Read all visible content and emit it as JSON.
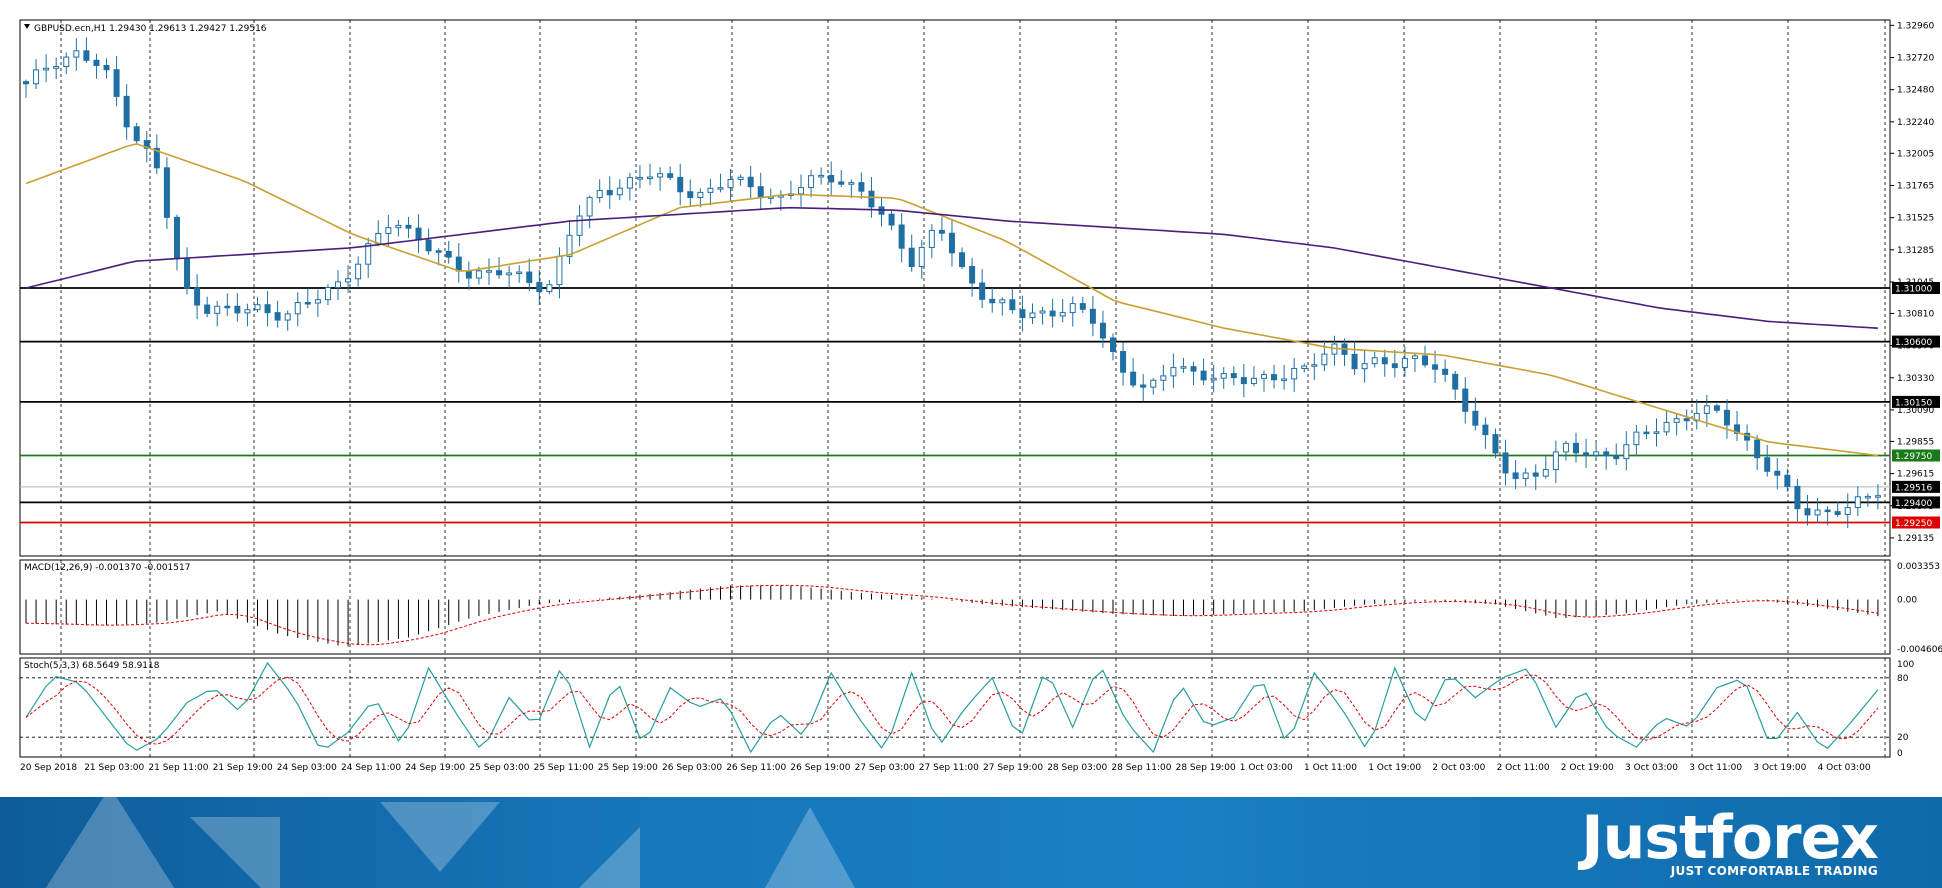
{
  "chart_data": {
    "type": "candlestick",
    "symbol_header": "GBPUSD.ecn,H1  1.29430 1.29613 1.29427 1.29516",
    "price_axis": {
      "ylim": [
        1.29,
        1.33
      ],
      "ticks": [
        "1.32960",
        "1.32720",
        "1.32480",
        "1.32240",
        "1.32005",
        "1.31765",
        "1.31525",
        "1.31285",
        "1.31045",
        "1.30810",
        "1.30570",
        "1.30330",
        "1.30090",
        "1.29855",
        "1.29615",
        "1.29375",
        "1.29135"
      ]
    },
    "x_axis_labels": [
      "20 Sep 2018",
      "21 Sep 03:00",
      "21 Sep 11:00",
      "21 Sep 19:00",
      "24 Sep 03:00",
      "24 Sep 11:00",
      "24 Sep 19:00",
      "25 Sep 03:00",
      "25 Sep 11:00",
      "25 Sep 19:00",
      "26 Sep 03:00",
      "26 Sep 11:00",
      "26 Sep 19:00",
      "27 Sep 03:00",
      "27 Sep 11:00",
      "27 Sep 19:00",
      "28 Sep 03:00",
      "28 Sep 11:00",
      "28 Sep 19:00",
      "1 Oct 03:00",
      "1 Oct 11:00",
      "1 Oct 19:00",
      "2 Oct 03:00",
      "2 Oct 11:00",
      "2 Oct 19:00",
      "3 Oct 03:00",
      "3 Oct 11:00",
      "3 Oct 19:00",
      "4 Oct 03:00"
    ],
    "horizontal_levels": [
      {
        "label": "1.31000",
        "value": 1.31,
        "color": "#000000"
      },
      {
        "label": "1.30600",
        "value": 1.306,
        "color": "#000000"
      },
      {
        "label": "1.30150",
        "value": 1.3015,
        "color": "#000000"
      },
      {
        "label": "1.29750",
        "value": 1.2975,
        "color": "#1a7a1a"
      },
      {
        "label": "1.29516",
        "value": 1.29516,
        "color": "#000000"
      },
      {
        "label": "1.29400",
        "value": 1.294,
        "color": "#000000"
      },
      {
        "label": "1.29250",
        "value": 1.2925,
        "color": "#dd0000"
      }
    ],
    "candle_close_anchors": [
      1.325,
      1.327,
      1.3275,
      1.3262,
      1.322,
      1.319,
      1.31,
      1.3085,
      1.3082,
      1.3085,
      1.308,
      1.309,
      1.3105,
      1.3125,
      1.315,
      1.314,
      1.312,
      1.311,
      1.3115,
      1.3105,
      1.31,
      1.315,
      1.317,
      1.318,
      1.3185,
      1.3175,
      1.317,
      1.318,
      1.3175,
      1.3165,
      1.318,
      1.3185,
      1.317,
      1.315,
      1.312,
      1.3145,
      1.311,
      1.309,
      1.308,
      1.3082,
      1.3085,
      1.3075,
      1.304,
      1.302,
      1.3045,
      1.3035,
      1.303,
      1.3035,
      1.3032,
      1.3038,
      1.306,
      1.304,
      1.3045,
      1.3048,
      1.304,
      1.302,
      1.2985,
      1.2955,
      1.2965,
      1.298,
      1.2975,
      1.2978,
      1.299,
      1.3,
      1.3008,
      1.3005,
      1.2985,
      1.296,
      1.2935,
      1.2933,
      1.2935,
      1.295
    ],
    "moving_averages": [
      {
        "name": "",
        "color": "#c8a032",
        "values": [
          1.3178,
          1.3208,
          1.318,
          1.314,
          1.3112,
          1.3125,
          1.316,
          1.317,
          1.3167,
          1.3135,
          1.309,
          1.307,
          1.3055,
          1.305,
          1.3035,
          1.301,
          1.2985,
          1.2975
        ]
      },
      {
        "name": "",
        "color": "#4b1e7c",
        "values": [
          1.31,
          1.312,
          1.3125,
          1.313,
          1.314,
          1.315,
          1.3155,
          1.316,
          1.3158,
          1.315,
          1.3145,
          1.314,
          1.313,
          1.3115,
          1.31,
          1.3085,
          1.3075,
          1.307
        ]
      }
    ],
    "indicators": [
      {
        "label": "MACD(12,26,9) -0.001370 -0.001517",
        "ticks": [
          "0.003353",
          "0.00",
          "-0.004606"
        ],
        "histogram_anchors": [
          -0.002,
          -0.0022,
          -0.002,
          -0.001,
          -0.003,
          -0.004,
          -0.0032,
          -0.0015,
          -0.0004,
          0.0001,
          0.0006,
          0.0012,
          0.0012,
          0.0006,
          0.0002,
          -0.0004,
          -0.0008,
          -0.0012,
          -0.0014,
          -0.0012,
          -0.001,
          -0.0004,
          -0.0001,
          -0.0004,
          -0.0016,
          -0.0012,
          -0.0004,
          0.0,
          -0.0006,
          -0.0014
        ]
      },
      {
        "label": "Stoch(5,3,3) 68.5649 58.9118",
        "ticks": [
          "100",
          "80",
          "20",
          "0"
        ],
        "k_anchors": [
          40,
          82,
          75,
          40,
          5,
          20,
          55,
          70,
          45,
          95,
          60,
          5,
          25,
          60,
          10,
          90,
          45,
          5,
          60,
          30,
          95,
          10,
          80,
          10,
          70,
          50,
          60,
          5,
          45,
          20,
          85,
          40,
          5,
          85,
          10,
          50,
          80,
          15,
          90,
          30,
          95,
          35,
          5,
          75,
          30,
          40,
          82,
          10,
          85,
          50,
          5,
          90,
          30,
          85,
          60,
          80,
          90,
          30,
          70,
          25,
          10,
          40,
          30,
          70,
          80,
          10,
          45,
          5,
          35,
          68
        ]
      }
    ]
  }
}
